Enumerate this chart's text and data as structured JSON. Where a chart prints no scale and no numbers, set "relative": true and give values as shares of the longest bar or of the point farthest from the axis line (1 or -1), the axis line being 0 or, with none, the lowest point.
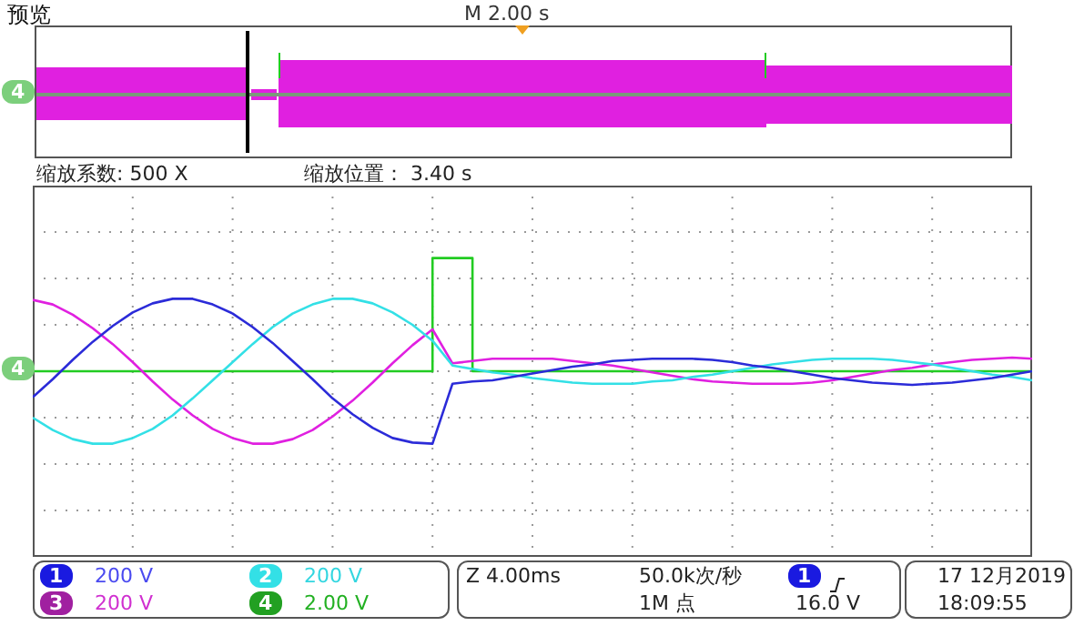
{
  "chart_data": {
    "type": "line",
    "title": "预览",
    "relative": true,
    "grid": true,
    "marker": "none",
    "line_style": "solid",
    "categories": [
      null,
      null,
      null,
      null,
      null,
      null,
      null,
      null,
      null,
      null,
      null,
      null,
      null,
      null,
      null,
      null,
      null,
      null,
      null,
      null,
      null,
      null,
      null,
      null,
      null,
      null,
      null,
      null,
      null,
      null,
      null,
      null,
      null,
      null,
      null,
      null,
      null,
      null,
      null,
      null,
      null,
      null,
      null,
      null,
      null,
      null,
      null,
      null,
      null,
      null,
      null
    ],
    "series": [
      {
        "color": "#2b2bd8",
        "values": [
          -0.23,
          -0.07,
          0.1,
          0.26,
          0.4,
          0.52,
          0.6,
          0.64,
          0.64,
          0.59,
          0.51,
          0.39,
          0.25,
          0.09,
          -0.07,
          -0.24,
          -0.38,
          -0.5,
          -0.59,
          -0.63,
          -0.64,
          -0.11,
          -0.09,
          -0.08,
          -0.05,
          -0.02,
          0.01,
          0.04,
          0.06,
          0.09,
          0.1,
          0.11,
          0.11,
          0.11,
          0.1,
          0.08,
          0.05,
          0.03,
          0.0,
          -0.03,
          -0.06,
          -0.08,
          -0.1,
          -0.11,
          -0.12,
          -0.11,
          -0.1,
          -0.08,
          -0.06,
          -0.03,
          0.0
        ]
      },
      {
        "color": "#33e0e6",
        "values": [
          -0.41,
          -0.52,
          -0.6,
          -0.64,
          -0.64,
          -0.59,
          -0.51,
          -0.39,
          -0.24,
          -0.08,
          0.08,
          0.24,
          0.39,
          0.51,
          0.59,
          0.64,
          0.64,
          0.6,
          0.52,
          0.41,
          0.27,
          0.05,
          0.02,
          -0.01,
          -0.03,
          -0.06,
          -0.08,
          -0.1,
          -0.11,
          -0.11,
          -0.11,
          -0.09,
          -0.08,
          -0.05,
          -0.03,
          0.0,
          0.03,
          0.06,
          0.08,
          0.1,
          0.11,
          0.11,
          0.11,
          0.1,
          0.08,
          0.06,
          0.03,
          0.0,
          -0.03,
          -0.05,
          -0.08
        ]
      },
      {
        "color": "#e020e0",
        "values": [
          0.63,
          0.59,
          0.5,
          0.38,
          0.24,
          0.08,
          -0.09,
          -0.25,
          -0.39,
          -0.51,
          -0.59,
          -0.64,
          -0.64,
          -0.6,
          -0.52,
          -0.4,
          -0.26,
          -0.1,
          0.07,
          0.23,
          0.37,
          0.07,
          0.09,
          0.11,
          0.11,
          0.11,
          0.11,
          0.09,
          0.07,
          0.05,
          0.02,
          -0.01,
          -0.04,
          -0.07,
          -0.09,
          -0.1,
          -0.11,
          -0.11,
          -0.11,
          -0.1,
          -0.08,
          -0.05,
          -0.02,
          0.01,
          0.03,
          0.06,
          0.08,
          0.1,
          0.11,
          0.12,
          0.11
        ]
      },
      {
        "type": "step",
        "color": "#22cc22",
        "values": [
          0,
          0,
          0,
          0,
          0,
          0,
          0,
          0,
          0,
          0,
          0,
          0,
          0,
          0,
          0,
          0,
          0,
          0,
          0,
          0,
          1,
          1,
          0,
          0,
          0,
          0,
          0,
          0,
          0,
          0,
          0,
          0,
          0,
          0,
          0,
          0,
          0,
          0,
          0,
          0,
          0,
          0,
          0,
          0,
          0,
          0,
          0,
          0,
          0,
          0,
          0
        ]
      }
    ],
    "annotations": [
      "M 2.00 s",
      "缩放系数: 500 X",
      "缩放位置： 3.40 s",
      "4",
      "1",
      "200 V",
      "2",
      "200 V",
      "3",
      "200 V",
      "4",
      "2.00 V",
      "Z 4.00ms",
      "50.0k次/秒",
      "1M 点",
      "1",
      "16.0 V",
      "17 12月2019",
      "18:09:55",
      "4"
    ]
  }
}
